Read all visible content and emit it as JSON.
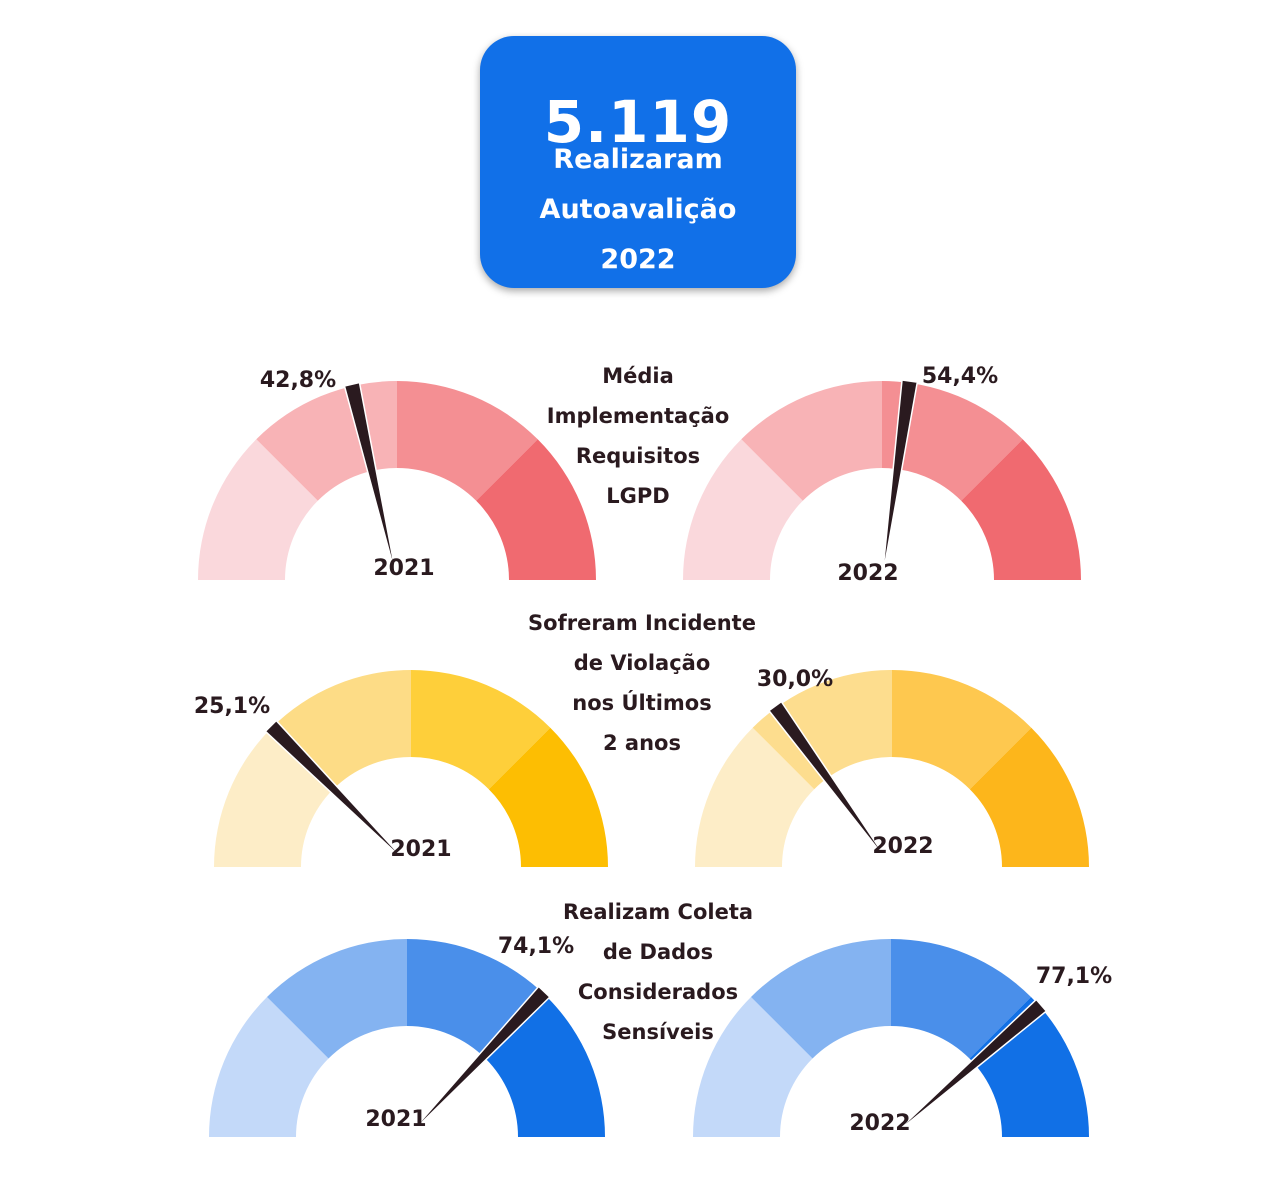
{
  "header": {
    "count": "5.119",
    "lines": [
      "Realizaram",
      "Autoavalição",
      "2022"
    ],
    "color": "#1170e8"
  },
  "chart_data": [
    {
      "type": "gauge",
      "title_lines": [
        "Média",
        "Implementação",
        "Requisitos",
        "LGPD"
      ],
      "color_bands": [
        "#fad8dc",
        "#f8b3b6",
        "#f48f93",
        "#f06a70"
      ],
      "min": 0,
      "max": 100,
      "series": [
        {
          "name": "2021",
          "value": 42.8,
          "value_label": "42,8%"
        },
        {
          "name": "2022",
          "value": 54.4,
          "value_label": "54,4%"
        }
      ]
    },
    {
      "type": "gauge",
      "title_lines": [
        "Sofreram Incidente",
        "de Violação",
        "nos Últimos",
        "2 anos"
      ],
      "color_bands": [
        "#fdedc7",
        "#fddc86",
        "#fecf3a",
        "#fdbe02"
      ],
      "color_bands_2022": [
        "#fdedc7",
        "#fddd8e",
        "#fec84f",
        "#fdb61b"
      ],
      "min": 0,
      "max": 100,
      "series": [
        {
          "name": "2021",
          "value": 25.1,
          "value_label": "25,1%"
        },
        {
          "name": "2022",
          "value": 30.0,
          "value_label": "30,0%"
        }
      ]
    },
    {
      "type": "gauge",
      "title_lines": [
        "Realizam Coleta",
        "de Dados",
        "Considerados",
        "Sensíveis"
      ],
      "color_bands": [
        "#c3d9f9",
        "#84b3f1",
        "#4a8fea",
        "#1170e6"
      ],
      "min": 0,
      "max": 100,
      "series": [
        {
          "name": "2021",
          "value": 74.1,
          "value_label": "74,1%"
        },
        {
          "name": "2022",
          "value": 77.1,
          "value_label": "77,1%"
        }
      ]
    }
  ],
  "needle_color": "#2a1a1f"
}
